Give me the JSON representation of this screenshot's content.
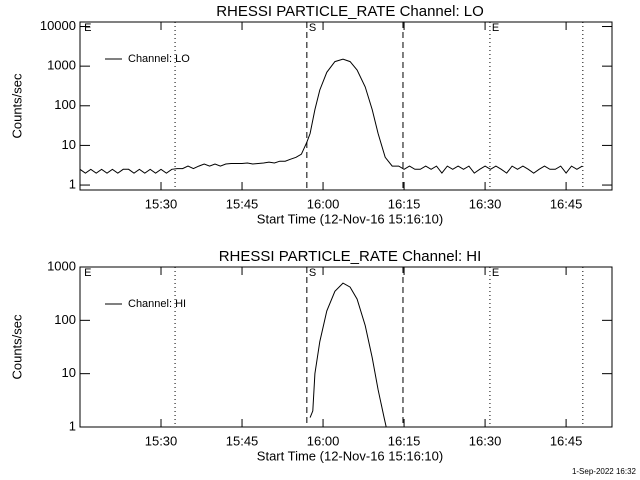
{
  "chart_data": [
    {
      "type": "line",
      "title": "RHESSI PARTICLE_RATE Channel: LO",
      "xlabel": "Start Time (12-Nov-16 15:16:10)",
      "ylabel": "Counts/sec",
      "log_y": true,
      "legend": "upper left",
      "xlim": [
        15,
        113.5
      ],
      "ylim": [
        0.75,
        13000
      ],
      "xticks": [
        {
          "value": 30,
          "label": "15:30"
        },
        {
          "value": 45,
          "label": "15:45"
        },
        {
          "value": 60,
          "label": "16:00"
        },
        {
          "value": 75,
          "label": "16:15"
        },
        {
          "value": 90,
          "label": "16:30"
        },
        {
          "value": 105,
          "label": "16:45"
        }
      ],
      "yticks": [
        1,
        10,
        100,
        1000,
        10000
      ],
      "vlines": [
        {
          "x": 15.4,
          "style": "none",
          "label": "E"
        },
        {
          "x": 32.6,
          "style": "dotted"
        },
        {
          "x": 57,
          "style": "dashed",
          "label": "S"
        },
        {
          "x": 74.8,
          "style": "dashed"
        },
        {
          "x": 90.9,
          "style": "dotted",
          "label": "E"
        },
        {
          "x": 108.1,
          "style": "dotted"
        }
      ],
      "series": [
        {
          "name": "Channel: LO",
          "color": "#000000",
          "x": [
            15,
            16,
            17,
            18,
            19,
            20,
            21,
            22,
            23,
            24,
            25,
            26,
            27,
            28,
            29,
            30,
            31,
            32,
            33,
            34,
            35,
            36,
            37,
            38,
            39,
            40,
            41,
            42,
            43,
            44,
            45,
            46,
            47,
            48,
            49,
            50,
            51,
            52,
            53,
            54,
            55,
            56,
            57,
            57.6,
            58.5,
            59.4,
            60.7,
            62.2,
            63.7,
            65,
            66.3,
            67.8,
            69.1,
            70.2,
            71.5,
            72.8,
            74,
            75,
            76,
            77,
            78,
            79,
            80,
            81,
            82,
            83,
            84,
            85,
            86,
            87,
            88,
            89,
            90,
            91,
            92,
            93,
            94,
            95,
            96,
            97,
            98,
            99,
            100,
            101,
            102,
            103,
            104,
            105,
            106,
            107,
            108
          ],
          "values": [
            2.5,
            2,
            2.5,
            2,
            2.5,
            2,
            2.5,
            2,
            2.5,
            2.5,
            2,
            2.5,
            2,
            2.5,
            2,
            2.5,
            2,
            2.5,
            2.6,
            2.6,
            3,
            2.6,
            3,
            3.4,
            3,
            3.4,
            3,
            3.4,
            3.5,
            3.5,
            3.5,
            3.6,
            3.4,
            3.5,
            3.6,
            3.8,
            3.6,
            4,
            4,
            4.5,
            5,
            6,
            12,
            20,
            80,
            250,
            700,
            1300,
            1500,
            1300,
            800,
            300,
            80,
            20,
            5,
            3,
            3,
            2.5,
            3,
            2.5,
            2.5,
            3,
            2.5,
            3,
            2,
            3,
            2.5,
            3,
            2.5,
            3,
            2,
            2.5,
            3,
            2.5,
            3,
            2.5,
            2,
            3,
            2.5,
            3,
            2.5,
            2,
            2.5,
            3,
            2.5,
            2.5,
            3,
            2,
            3,
            2.5,
            3
          ]
        }
      ]
    },
    {
      "type": "line",
      "title": "RHESSI PARTICLE_RATE Channel: HI",
      "xlabel": "Start Time (12-Nov-16 15:16:10)",
      "ylabel": "Counts/sec",
      "log_y": true,
      "legend": "upper left",
      "xlim": [
        15,
        113.5
      ],
      "ylim": [
        1,
        1000
      ],
      "xticks": [
        {
          "value": 30,
          "label": "15:30"
        },
        {
          "value": 45,
          "label": "15:45"
        },
        {
          "value": 60,
          "label": "16:00"
        },
        {
          "value": 75,
          "label": "16:15"
        },
        {
          "value": 90,
          "label": "16:30"
        },
        {
          "value": 105,
          "label": "16:45"
        }
      ],
      "yticks": [
        1,
        10,
        100,
        1000
      ],
      "vlines": [
        {
          "x": 15.4,
          "style": "none",
          "label": "E"
        },
        {
          "x": 32.6,
          "style": "dotted"
        },
        {
          "x": 57,
          "style": "dashed",
          "label": "S"
        },
        {
          "x": 74.8,
          "style": "dashed"
        },
        {
          "x": 90.9,
          "style": "dotted",
          "label": "E"
        },
        {
          "x": 108.1,
          "style": "dotted"
        }
      ],
      "series": [
        {
          "name": "Channel: HI",
          "color": "#000000",
          "x": [
            57.6,
            58.1,
            58.5,
            59.4,
            60.7,
            62.2,
            63.7,
            65,
            66.3,
            67.8,
            69.1,
            70.2,
            71.3,
            71.7
          ],
          "values": [
            1.5,
            2,
            10,
            40,
            150,
            350,
            500,
            420,
            250,
            80,
            20,
            5,
            1.5,
            1
          ]
        }
      ]
    }
  ],
  "footer": "1-Sep-2022 16:32"
}
